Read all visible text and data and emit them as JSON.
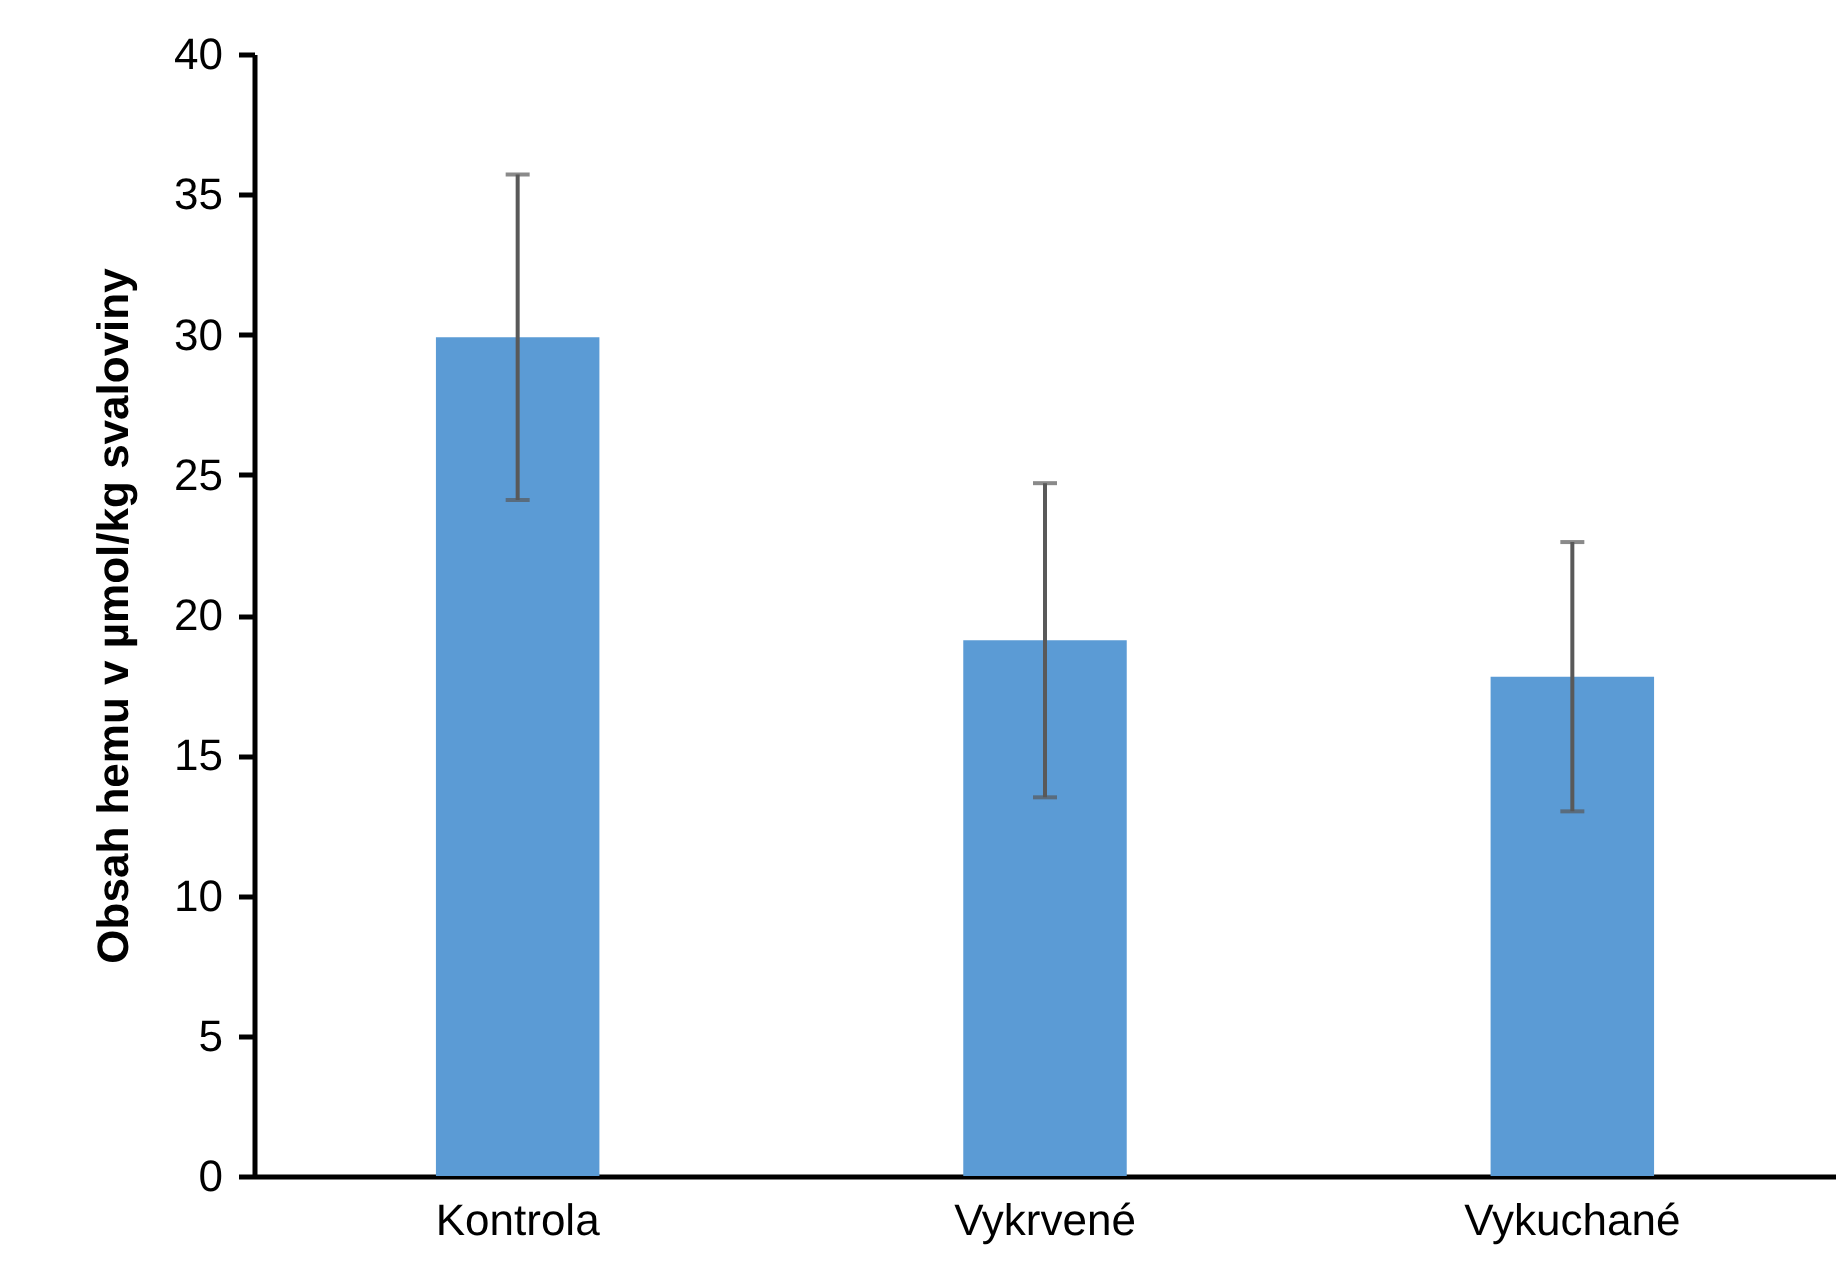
{
  "chart_data": {
    "type": "bar",
    "ylabel": "Obsah hemu v µmol/kg svaloviny",
    "categories": [
      "Kontrola",
      "Vykrvené",
      "Vykuchané"
    ],
    "values": [
      29.9,
      19.1,
      17.8
    ],
    "errors": [
      5.8,
      5.6,
      4.8
    ],
    "color": "#5b9bd5",
    "ylim": [
      0,
      40
    ],
    "yticks": [
      0,
      5,
      10,
      15,
      20,
      25,
      30,
      35,
      40
    ],
    "grid": false
  }
}
